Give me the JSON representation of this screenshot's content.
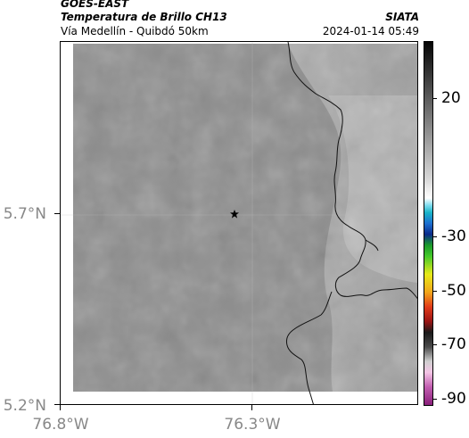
{
  "header": {
    "source": "GOES-EAST",
    "product": "Temperatura de Brillo CH13",
    "agency": "SIATA",
    "location": "Vía Medellín - Quibdó 50km",
    "datetime": "2024-01-14 05:49"
  },
  "map": {
    "marker": "star-icon",
    "latitude_labels": [
      "5.7°N",
      "5.2°N"
    ],
    "longitude_labels": [
      "76.8°W",
      "76.3°W"
    ]
  },
  "colorbar": {
    "labels": [
      "20",
      "-30",
      "-50",
      "-70",
      "-90"
    ],
    "values": [
      20,
      -30,
      -50,
      -70,
      -90
    ]
  }
}
